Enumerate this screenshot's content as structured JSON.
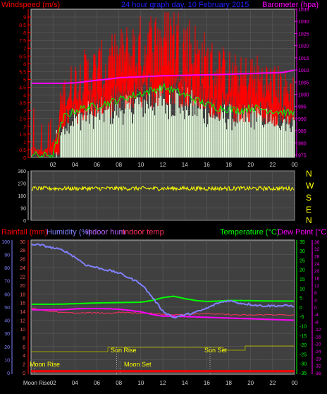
{
  "header": {
    "left_title": "Windspeed (m/s)",
    "center_title": "24 hour graph day, 10 February 2015",
    "right_title": "Barometer (hpa)"
  },
  "bottom_header": {
    "rain": "Rainfall (mm)",
    "humidity": "Humidity (%)",
    "indoor_hum": "Indoor hum",
    "indoor_temp": "Indoor temp",
    "temperature": "Temperature (°C)",
    "dew_point": "Dew Point (°C)"
  },
  "compass": [
    "N",
    "W",
    "S",
    "E",
    "N"
  ],
  "annotations": {
    "sun_rise": "Sun Rise",
    "sun_set": "Sun Set",
    "moon_rise": "Moon Rise",
    "moon_set": "Moon Set",
    "moon_rise_short": "Moon Rise"
  },
  "colors": {
    "windspeed": "#ff0000",
    "gust_avg": "#00ff00",
    "wind_bars": "#e8ffe0",
    "barometer": "#ff00ff",
    "direction": "#ffff00",
    "humidity": "#8080ff",
    "temperature": "#00ff00",
    "dew_point": "#ff00ff",
    "indoor_temp": "#ff3060",
    "rain": "#ff0000",
    "sun": "#a0a000"
  },
  "chart_data": [
    {
      "type": "bar",
      "name": "wind-panel",
      "x_ticks": [
        "02",
        "04",
        "06",
        "08",
        "10",
        "12",
        "14",
        "16",
        "18",
        "20",
        "22",
        "00"
      ],
      "y_left_ticks": [
        "0",
        "0.5",
        "1",
        "1.5",
        "2",
        "2.5",
        "3",
        "3.5",
        "4",
        "4.5",
        "5",
        "5.5",
        "6",
        "6.5",
        "7",
        "7.5",
        "8",
        "8.5",
        "9"
      ],
      "y_left_lim": [
        0,
        9.5
      ],
      "y_right_ticks": [
        "975",
        "980",
        "985",
        "990",
        "995",
        "1000",
        "1005",
        "1010",
        "1015",
        "1020",
        "1025",
        "1030",
        "1035"
      ],
      "y_right_lim": [
        974,
        1035
      ],
      "windspeed_hourly": [
        0.8,
        0.5,
        1.2,
        3.5,
        4.2,
        4.6,
        4.8,
        5.0,
        5.4,
        5.8,
        6.0,
        6.3,
        6.6,
        6.7,
        6.3,
        5.8,
        5.2,
        4.8,
        4.6,
        4.2,
        4.5,
        4.3,
        4.0,
        3.8,
        3.6
      ],
      "average_hourly": [
        0.2,
        0.1,
        0.2,
        2.6,
        3.0,
        3.2,
        3.3,
        3.5,
        3.7,
        3.9,
        4.1,
        4.3,
        4.5,
        4.3,
        4.0,
        3.7,
        3.4,
        3.2,
        3.1,
        3.0,
        3.2,
        3.1,
        3.0,
        2.9,
        2.8
      ],
      "barometer_hourly": [
        1004.5,
        1004.5,
        1004.5,
        1004.5,
        1004.7,
        1005.2,
        1005.8,
        1006.2,
        1006.8,
        1007.0,
        1007.2,
        1007.4,
        1007.6,
        1007.7,
        1007.8,
        1007.9,
        1008.0,
        1008.1,
        1008.2,
        1008.4,
        1008.5,
        1008.7,
        1008.8,
        1009.0,
        1010.0
      ]
    },
    {
      "type": "line",
      "name": "direction-panel",
      "y_ticks": [
        "0",
        "90",
        "180",
        "270",
        "360"
      ],
      "y_lim": [
        0,
        360
      ],
      "direction_mean": 232,
      "direction_spread": 15
    },
    {
      "type": "line",
      "name": "temp-panel",
      "x_ticks": [
        "Moon Rise",
        "02",
        "04",
        "06",
        "08",
        "10",
        "12",
        "14",
        "16",
        "18",
        "20",
        "22",
        "00"
      ],
      "y_left_ticks": [
        "0",
        "10",
        "20",
        "30",
        "40",
        "50",
        "60",
        "70",
        "80",
        "90",
        "100"
      ],
      "y_rain_ticks": [
        "0",
        "2",
        "4",
        "6",
        "8",
        "10",
        "12",
        "14",
        "16",
        "18",
        "20",
        "22",
        "24",
        "26",
        "28",
        "30"
      ],
      "y_temp_ticks": [
        "-35",
        "-30",
        "-25",
        "-20",
        "-15",
        "-10",
        "-5",
        "0",
        "5",
        "10",
        "15",
        "20",
        "25",
        "30",
        "35"
      ],
      "y_dew_ticks": [
        "-36",
        "-32",
        "-28",
        "-24",
        "-20",
        "-16",
        "-12",
        "-8",
        "-4",
        "0",
        "4",
        "8",
        "12",
        "16",
        "20",
        "24",
        "28",
        "32",
        "36"
      ],
      "humidity_hourly": [
        98,
        97,
        95,
        93,
        88,
        82,
        80,
        78,
        76,
        72,
        68,
        58,
        47,
        42,
        44,
        46,
        49,
        53,
        55,
        53,
        52,
        51,
        51,
        51,
        51
      ],
      "temperature_hourly": [
        1.5,
        1.5,
        1.5,
        1.6,
        1.8,
        2.0,
        2.2,
        2.3,
        2.4,
        2.5,
        2.6,
        3.5,
        5.0,
        5.8,
        4.5,
        3.5,
        3.0,
        3.2,
        3.5,
        3.5,
        3.4,
        3.3,
        3.2,
        3.2,
        3.2
      ],
      "dew_point_hourly": [
        -1.5,
        -1.5,
        -1.5,
        -1.4,
        -1.0,
        -0.8,
        -0.8,
        -0.9,
        -1.2,
        -1.8,
        -2.6,
        -4.0,
        -5.0,
        -5.0,
        -5.2,
        -5.4,
        -5.6,
        -5.8,
        -6.0,
        -6.2,
        -6.4,
        -6.6,
        -6.8,
        -7.0,
        -7.2
      ],
      "indoor_temp_hourly": [
        -0.5,
        -1.5,
        -2.5,
        -3.0,
        -3.2,
        -3.0,
        -3.1,
        -3.3,
        -2.8,
        -3.0,
        -3.2,
        -3.4,
        -3.8,
        -4.2,
        -3.8,
        -3.6,
        -3.4,
        -3.8,
        -4.0,
        -4.2,
        -4.3,
        -4.1,
        -4.0,
        -4.2,
        -4.4
      ],
      "rain_mm": 0.2,
      "sun_series": "daylight"
    }
  ]
}
